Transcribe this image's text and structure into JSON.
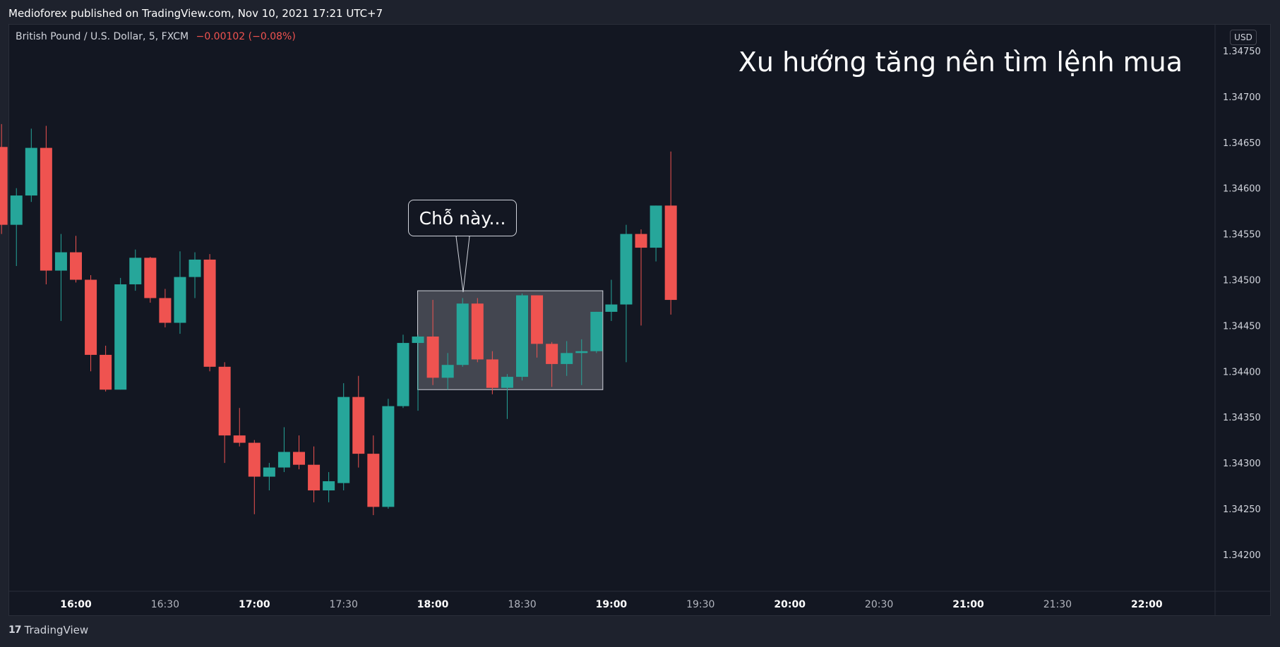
{
  "header": {
    "published_text": "Medioforex published on TradingView.com, Nov 10, 2021 17:21 UTC+7"
  },
  "legend": {
    "symbol": "British Pound / U.S. Dollar, 5, FXCM",
    "change": "−0.00102 (−0.08%)"
  },
  "price_axis": {
    "currency": "USD"
  },
  "annotations": {
    "headline": "Xu hướng tăng nên tìm lệnh mua",
    "callout": "Chỗ này..."
  },
  "branding": {
    "logo_mark": "17",
    "logo_text": "TradingView"
  },
  "colors": {
    "up": "#26a69a",
    "down": "#ef5350",
    "background": "#131722",
    "frame": "#1e222d",
    "highlight_box": "#4c4f58"
  },
  "chart_data": {
    "type": "candlestick",
    "interval": "5m",
    "y_ticks": [
      "1.34200",
      "1.34250",
      "1.34300",
      "1.34350",
      "1.34400",
      "1.34450",
      "1.34500",
      "1.34550",
      "1.34600",
      "1.34650",
      "1.34700",
      "1.34750"
    ],
    "x_ticks": [
      {
        "t": "16:00",
        "major": true
      },
      {
        "t": "16:30",
        "major": false
      },
      {
        "t": "17:00",
        "major": true
      },
      {
        "t": "17:30",
        "major": false
      },
      {
        "t": "18:00",
        "major": true
      },
      {
        "t": "18:30",
        "major": false
      },
      {
        "t": "19:00",
        "major": true
      },
      {
        "t": "19:30",
        "major": false
      },
      {
        "t": "20:00",
        "major": true
      },
      {
        "t": "20:30",
        "major": false
      },
      {
        "t": "21:00",
        "major": true
      },
      {
        "t": "21:30",
        "major": false
      },
      {
        "t": "22:00",
        "major": true
      }
    ],
    "ylim": [
      1.3417,
      1.34775
    ],
    "candles": [
      {
        "t": "15:35",
        "o": 1.34645,
        "h": 1.3467,
        "l": 1.3455,
        "c": 1.3456
      },
      {
        "t": "15:40",
        "o": 1.3456,
        "h": 1.346,
        "l": 1.34515,
        "c": 1.34592
      },
      {
        "t": "15:45",
        "o": 1.34592,
        "h": 1.34665,
        "l": 1.34585,
        "c": 1.34644
      },
      {
        "t": "15:50",
        "o": 1.34644,
        "h": 1.34668,
        "l": 1.34495,
        "c": 1.3451
      },
      {
        "t": "15:55",
        "o": 1.3451,
        "h": 1.3455,
        "l": 1.34455,
        "c": 1.3453
      },
      {
        "t": "16:00",
        "o": 1.3453,
        "h": 1.34548,
        "l": 1.34497,
        "c": 1.345
      },
      {
        "t": "16:05",
        "o": 1.345,
        "h": 1.34505,
        "l": 1.344,
        "c": 1.34418
      },
      {
        "t": "16:10",
        "o": 1.34418,
        "h": 1.34428,
        "l": 1.34378,
        "c": 1.3438
      },
      {
        "t": "16:15",
        "o": 1.3438,
        "h": 1.34502,
        "l": 1.3438,
        "c": 1.34495
      },
      {
        "t": "16:20",
        "o": 1.34495,
        "h": 1.34533,
        "l": 1.34488,
        "c": 1.34524
      },
      {
        "t": "16:25",
        "o": 1.34524,
        "h": 1.34525,
        "l": 1.34475,
        "c": 1.3448
      },
      {
        "t": "16:30",
        "o": 1.3448,
        "h": 1.3449,
        "l": 1.34448,
        "c": 1.34453
      },
      {
        "t": "16:35",
        "o": 1.34453,
        "h": 1.34531,
        "l": 1.34441,
        "c": 1.34503
      },
      {
        "t": "16:40",
        "o": 1.34503,
        "h": 1.3453,
        "l": 1.3448,
        "c": 1.34522
      },
      {
        "t": "16:45",
        "o": 1.34522,
        "h": 1.34528,
        "l": 1.344,
        "c": 1.34405
      },
      {
        "t": "16:50",
        "o": 1.34405,
        "h": 1.3441,
        "l": 1.343,
        "c": 1.3433
      },
      {
        "t": "16:55",
        "o": 1.3433,
        "h": 1.3436,
        "l": 1.34318,
        "c": 1.34322
      },
      {
        "t": "17:00",
        "o": 1.34322,
        "h": 1.34325,
        "l": 1.34244,
        "c": 1.34285
      },
      {
        "t": "17:05",
        "o": 1.34285,
        "h": 1.343,
        "l": 1.3427,
        "c": 1.34295
      },
      {
        "t": "17:10",
        "o": 1.34295,
        "h": 1.34339,
        "l": 1.3429,
        "c": 1.34312
      },
      {
        "t": "17:15",
        "o": 1.34312,
        "h": 1.3433,
        "l": 1.34293,
        "c": 1.34298
      },
      {
        "t": "17:20",
        "o": 1.34298,
        "h": 1.34318,
        "l": 1.34257,
        "c": 1.3427
      },
      {
        "t": "17:25",
        "o": 1.3427,
        "h": 1.3429,
        "l": 1.34257,
        "c": 1.3428
      },
      {
        "t": "17:30",
        "o": 1.34278,
        "h": 1.34387,
        "l": 1.3427,
        "c": 1.34372
      },
      {
        "t": "17:35",
        "o": 1.34372,
        "h": 1.34395,
        "l": 1.34295,
        "c": 1.3431
      },
      {
        "t": "17:40",
        "o": 1.3431,
        "h": 1.3433,
        "l": 1.34243,
        "c": 1.34252
      },
      {
        "t": "17:45",
        "o": 1.34252,
        "h": 1.3437,
        "l": 1.3425,
        "c": 1.34362
      },
      {
        "t": "17:50",
        "o": 1.34362,
        "h": 1.3444,
        "l": 1.3436,
        "c": 1.34431
      },
      {
        "t": "17:55",
        "o": 1.34431,
        "h": 1.3444,
        "l": 1.34357,
        "c": 1.34438
      },
      {
        "t": "18:00",
        "o": 1.34438,
        "h": 1.34478,
        "l": 1.34385,
        "c": 1.34393
      },
      {
        "t": "18:05",
        "o": 1.34393,
        "h": 1.3442,
        "l": 1.3438,
        "c": 1.34407
      },
      {
        "t": "18:10",
        "o": 1.34407,
        "h": 1.3448,
        "l": 1.34405,
        "c": 1.34474
      },
      {
        "t": "18:15",
        "o": 1.34474,
        "h": 1.3448,
        "l": 1.3441,
        "c": 1.34413
      },
      {
        "t": "18:20",
        "o": 1.34413,
        "h": 1.34422,
        "l": 1.34375,
        "c": 1.34382
      },
      {
        "t": "18:25",
        "o": 1.34382,
        "h": 1.34397,
        "l": 1.34348,
        "c": 1.34394
      },
      {
        "t": "18:30",
        "o": 1.34394,
        "h": 1.34485,
        "l": 1.3439,
        "c": 1.34483
      },
      {
        "t": "18:35",
        "o": 1.34483,
        "h": 1.34483,
        "l": 1.34415,
        "c": 1.3443
      },
      {
        "t": "18:40",
        "o": 1.3443,
        "h": 1.34432,
        "l": 1.34383,
        "c": 1.34408
      },
      {
        "t": "18:45",
        "o": 1.34408,
        "h": 1.34433,
        "l": 1.34395,
        "c": 1.3442
      },
      {
        "t": "18:50",
        "o": 1.3442,
        "h": 1.34435,
        "l": 1.34385,
        "c": 1.34422
      },
      {
        "t": "18:55",
        "o": 1.34422,
        "h": 1.34465,
        "l": 1.3442,
        "c": 1.34465
      },
      {
        "t": "19:00",
        "o": 1.34465,
        "h": 1.345,
        "l": 1.34455,
        "c": 1.34473
      },
      {
        "t": "19:05",
        "o": 1.34473,
        "h": 1.3456,
        "l": 1.3441,
        "c": 1.3455
      },
      {
        "t": "19:10",
        "o": 1.3455,
        "h": 1.34555,
        "l": 1.3445,
        "c": 1.34535
      },
      {
        "t": "19:15",
        "o": 1.34535,
        "h": 1.34581,
        "l": 1.3452,
        "c": 1.34581
      },
      {
        "t": "19:20",
        "o": 1.34581,
        "h": 1.3464,
        "l": 1.34462,
        "c": 1.34478
      }
    ],
    "highlight_box": {
      "t_start": "17:55",
      "t_end": "18:55",
      "price_low": 1.3438,
      "price_high": 1.34488
    }
  }
}
